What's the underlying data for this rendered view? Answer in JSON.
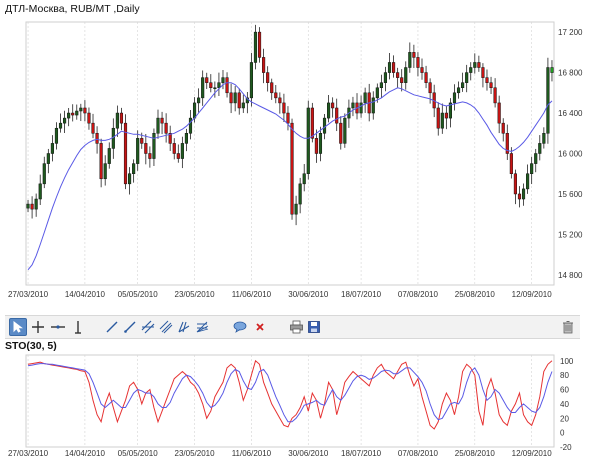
{
  "price_panel": {
    "title": "ДТЛ-Москва, RUB/MT ,Daily"
  },
  "osc_panel": {
    "title": "STO(30, 5)"
  },
  "toolbar": {
    "tools": [
      "cursor-icon",
      "crosshair-icon",
      "horizontal-line-icon",
      "vertical-line-icon",
      "trend-line-icon",
      "ray-line-icon",
      "parallel-channel-icon",
      "regression-channel-icon",
      "andrews-pitchfork-icon",
      "fibonacci-fan-icon",
      "comment-icon",
      "delete-drawing-icon",
      "print-icon",
      "save-icon",
      "trash-icon"
    ]
  },
  "colors": {
    "up_candle": "#1f5a1f",
    "down_candle": "#c81414",
    "ma_line": "#5a5ae6",
    "sto_k": "#e63232",
    "sto_d": "#5a5ae6",
    "grid": "#d4d4d4",
    "highlight_bar": "#1fa01f"
  },
  "chart_data": [
    {
      "type": "candlestick",
      "title": "ДТЛ-Москва, RUB/MT ,Daily",
      "x_tick_labels": [
        "27/03/2010",
        "14/04/2010",
        "05/05/2010",
        "23/05/2010",
        "11/06/2010",
        "30/06/2010",
        "18/07/2010",
        "07/08/2010",
        "25/08/2010",
        "12/09/2010"
      ],
      "y_tick_labels": [
        "17 200",
        "16 800",
        "16 400",
        "16 000",
        "15 600",
        "15 200",
        "14 800"
      ],
      "ylim": [
        14700,
        17300
      ],
      "n_bars": 130,
      "last_bar_highlight": "green",
      "close_series": [
        15500,
        15450,
        15550,
        15700,
        15900,
        16000,
        16100,
        16250,
        16300,
        16350,
        16400,
        16380,
        16420,
        16450,
        16400,
        16300,
        16200,
        16100,
        15750,
        15900,
        16050,
        16250,
        16400,
        16300,
        15700,
        15800,
        15900,
        16150,
        16100,
        16000,
        15950,
        16200,
        16350,
        16300,
        16200,
        16100,
        16000,
        15950,
        16100,
        16200,
        16350,
        16500,
        16550,
        16750,
        16700,
        16650,
        16650,
        16700,
        16750,
        16600,
        16500,
        16600,
        16450,
        16500,
        16550,
        16900,
        17200,
        16950,
        16800,
        16700,
        16600,
        16550,
        16500,
        16400,
        16300,
        15400,
        15500,
        15700,
        15800,
        16450,
        16150,
        16000,
        16200,
        16350,
        16500,
        16450,
        16300,
        16100,
        16350,
        16450,
        16500,
        16400,
        16500,
        16600,
        16400,
        16550,
        16650,
        16700,
        16800,
        16900,
        16800,
        16750,
        16700,
        16850,
        17000,
        16950,
        16850,
        16800,
        16700,
        16600,
        16450,
        16250,
        16400,
        16350,
        16500,
        16600,
        16650,
        16700,
        16800,
        16850,
        16900,
        16850,
        16750,
        16700,
        16650,
        16500,
        16300,
        16200,
        16000,
        15800,
        15600,
        15550,
        15650,
        15800,
        15900,
        16000,
        16100,
        16200,
        16850,
        16800
      ],
      "ma_series": [
        14850,
        14900,
        14990,
        15100,
        15220,
        15340,
        15460,
        15570,
        15670,
        15760,
        15840,
        15910,
        15980,
        16040,
        16080,
        16110,
        16130,
        16140,
        16130,
        16130,
        16140,
        16160,
        16190,
        16220,
        16210,
        16200,
        16190,
        16190,
        16180,
        16170,
        16160,
        16150,
        16160,
        16170,
        16180,
        16190,
        16200,
        16220,
        16240,
        16270,
        16310,
        16350,
        16400,
        16450,
        16500,
        16550,
        16600,
        16640,
        16680,
        16700,
        16700,
        16680,
        16640,
        16590,
        16540,
        16510,
        16490,
        16470,
        16450,
        16430,
        16410,
        16390,
        16360,
        16330,
        16290,
        16240,
        16200,
        16170,
        16150,
        16150,
        16170,
        16200,
        16230,
        16260,
        16290,
        16320,
        16340,
        16360,
        16370,
        16400,
        16430,
        16450,
        16470,
        16490,
        16500,
        16510,
        16530,
        16550,
        16580,
        16610,
        16630,
        16650,
        16640,
        16620,
        16600,
        16580,
        16570,
        16560,
        16550,
        16540,
        16520,
        16500,
        16480,
        16470,
        16480,
        16490,
        16500,
        16510,
        16500,
        16480,
        16450,
        16400,
        16340,
        16280,
        16210,
        16150,
        16090,
        16050,
        16030,
        16020,
        16040,
        16070,
        16110,
        16160,
        16220,
        16280,
        16340,
        16400,
        16480,
        16520
      ]
    },
    {
      "type": "line",
      "title": "STO(30, 5)",
      "x_tick_labels": [
        "27/03/2010",
        "14/04/2010",
        "05/05/2010",
        "23/05/2010",
        "11/06/2010",
        "30/06/2010",
        "18/07/2010",
        "07/08/2010",
        "25/08/2010",
        "12/09/2010"
      ],
      "y_tick_labels": [
        "100",
        "80",
        "60",
        "40",
        "20",
        "0",
        "-20"
      ],
      "ylim": [
        -20,
        108
      ],
      "series": [
        {
          "key": "k",
          "values": [
            95,
            96,
            97,
            98,
            96,
            95,
            94,
            93,
            92,
            91,
            90,
            89,
            88,
            86,
            85,
            70,
            45,
            25,
            15,
            40,
            55,
            35,
            15,
            30,
            45,
            65,
            70,
            60,
            40,
            55,
            60,
            35,
            15,
            30,
            45,
            60,
            75,
            80,
            85,
            80,
            70,
            65,
            55,
            40,
            20,
            30,
            50,
            60,
            70,
            90,
            95,
            90,
            70,
            45,
            60,
            80,
            100,
            95,
            70,
            55,
            40,
            30,
            20,
            10,
            8,
            20,
            25,
            35,
            50,
            30,
            55,
            45,
            20,
            40,
            70,
            60,
            25,
            45,
            70,
            78,
            85,
            80,
            75,
            70,
            65,
            80,
            90,
            95,
            85,
            80,
            75,
            85,
            95,
            98,
            80,
            65,
            75,
            50,
            30,
            10,
            5,
            15,
            40,
            55,
            45,
            25,
            50,
            85,
            95,
            90,
            80,
            30,
            10,
            60,
            75,
            55,
            25,
            15,
            10,
            30,
            40,
            55,
            25,
            15,
            10,
            25,
            50,
            85,
            95,
            100
          ]
        },
        {
          "key": "d",
          "values": [
            93,
            94,
            95,
            96,
            96,
            95,
            95,
            94,
            93,
            92,
            91,
            90,
            89,
            88,
            87,
            82,
            70,
            55,
            40,
            35,
            40,
            45,
            40,
            35,
            35,
            45,
            55,
            60,
            58,
            55,
            55,
            50,
            40,
            35,
            35,
            42,
            55,
            65,
            75,
            80,
            78,
            72,
            65,
            55,
            42,
            35,
            38,
            45,
            55,
            70,
            82,
            88,
            85,
            72,
            62,
            60,
            70,
            85,
            88,
            80,
            65,
            50,
            38,
            25,
            15,
            15,
            20,
            28,
            38,
            40,
            42,
            45,
            40,
            38,
            50,
            60,
            50,
            45,
            52,
            62,
            72,
            78,
            80,
            78,
            74,
            76,
            80,
            85,
            87,
            86,
            82,
            82,
            86,
            90,
            90,
            84,
            78,
            70,
            58,
            40,
            25,
            18,
            20,
            30,
            40,
            42,
            40,
            50,
            70,
            85,
            90,
            80,
            60,
            45,
            50,
            60,
            55,
            45,
            35,
            28,
            28,
            35,
            40,
            35,
            30,
            28,
            35,
            50,
            70,
            85
          ]
        }
      ]
    }
  ]
}
